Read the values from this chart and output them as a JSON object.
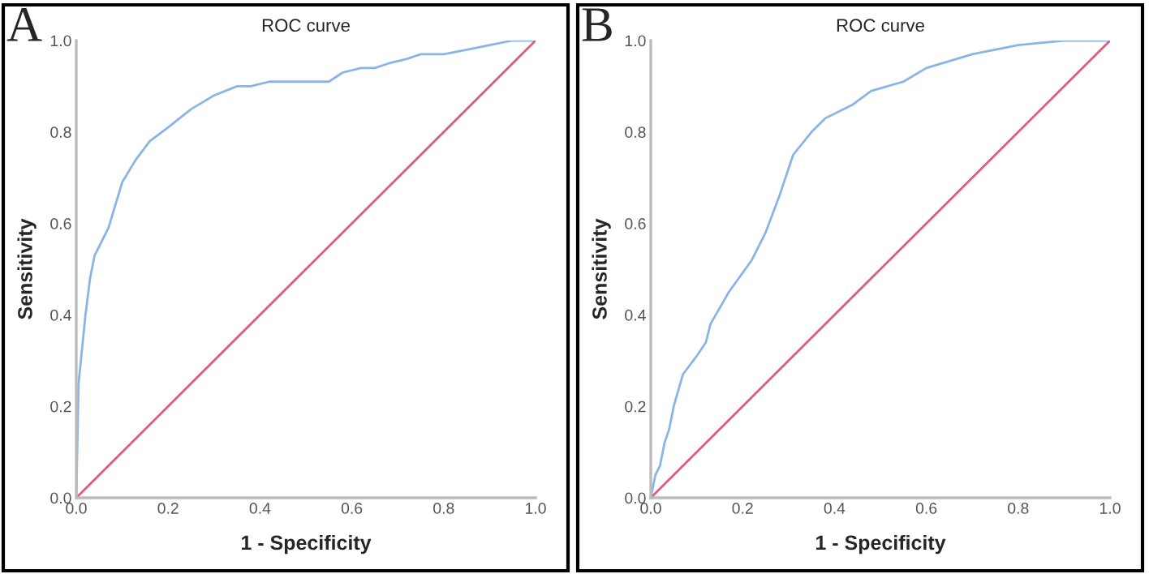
{
  "chart_data": [
    {
      "type": "line",
      "title": "ROC curve",
      "xlabel": "1 - Specificity",
      "ylabel": "Sensitivity",
      "annotations": [
        "A"
      ],
      "xlim": [
        0,
        1
      ],
      "ylim": [
        0,
        1
      ],
      "xticks": [
        {
          "value": 0,
          "label": "0.0"
        },
        {
          "value": 0.2,
          "label": "0.2"
        },
        {
          "value": 0.4,
          "label": "0.4"
        },
        {
          "value": 0.6,
          "label": "0.6"
        },
        {
          "value": 0.8,
          "label": "0.8"
        },
        {
          "value": 1,
          "label": "1.0"
        }
      ],
      "yticks": [
        {
          "value": 0,
          "label": "0.0"
        },
        {
          "value": 0.2,
          "label": "0.2"
        },
        {
          "value": 0.4,
          "label": "0.4"
        },
        {
          "value": 0.6,
          "label": "0.6"
        },
        {
          "value": 0.8,
          "label": "0.8"
        },
        {
          "value": 1,
          "label": "1.0"
        }
      ],
      "series": [
        {
          "color": "#8ab4e8",
          "x": [
            0,
            0.005,
            0.01,
            0.02,
            0.03,
            0.04,
            0.05,
            0.07,
            0.1,
            0.13,
            0.16,
            0.2,
            0.25,
            0.3,
            0.35,
            0.38,
            0.42,
            0.5,
            0.55,
            0.58,
            0.62,
            0.65,
            0.68,
            0.72,
            0.75,
            0.8,
            0.85,
            0.9,
            0.95,
            1
          ],
          "values": [
            0,
            0.25,
            0.3,
            0.4,
            0.48,
            0.53,
            0.55,
            0.59,
            0.69,
            0.74,
            0.78,
            0.81,
            0.85,
            0.88,
            0.9,
            0.9,
            0.91,
            0.91,
            0.91,
            0.93,
            0.94,
            0.94,
            0.95,
            0.96,
            0.97,
            0.97,
            0.98,
            0.99,
            1,
            1
          ]
        },
        {
          "color": "#e05a7a",
          "x": [
            0,
            1
          ],
          "values": [
            0,
            1
          ]
        }
      ]
    },
    {
      "type": "line",
      "title": "ROC curve",
      "xlabel": "1 - Specificity",
      "ylabel": "Sensitivity",
      "annotations": [
        "B"
      ],
      "xlim": [
        0,
        1
      ],
      "ylim": [
        0,
        1
      ],
      "xticks": [
        {
          "value": 0,
          "label": "0.0"
        },
        {
          "value": 0.2,
          "label": "0.2"
        },
        {
          "value": 0.4,
          "label": "0.4"
        },
        {
          "value": 0.6,
          "label": "0.6"
        },
        {
          "value": 0.8,
          "label": "0.8"
        },
        {
          "value": 1,
          "label": "1.0"
        }
      ],
      "yticks": [
        {
          "value": 0,
          "label": "0.0"
        },
        {
          "value": 0.2,
          "label": "0.2"
        },
        {
          "value": 0.4,
          "label": "0.4"
        },
        {
          "value": 0.6,
          "label": "0.6"
        },
        {
          "value": 0.8,
          "label": "0.8"
        },
        {
          "value": 1,
          "label": "1.0"
        }
      ],
      "series": [
        {
          "color": "#8ab4e8",
          "x": [
            0,
            0.01,
            0.02,
            0.03,
            0.04,
            0.05,
            0.07,
            0.1,
            0.12,
            0.13,
            0.17,
            0.22,
            0.25,
            0.28,
            0.31,
            0.35,
            0.38,
            0.44,
            0.48,
            0.55,
            0.6,
            0.7,
            0.8,
            0.9,
            1
          ],
          "values": [
            0,
            0.05,
            0.07,
            0.12,
            0.15,
            0.2,
            0.27,
            0.31,
            0.34,
            0.38,
            0.45,
            0.52,
            0.58,
            0.66,
            0.75,
            0.8,
            0.83,
            0.86,
            0.89,
            0.91,
            0.94,
            0.97,
            0.99,
            1,
            1
          ]
        },
        {
          "color": "#e05a7a",
          "x": [
            0,
            1
          ],
          "values": [
            0,
            1
          ]
        }
      ]
    }
  ]
}
